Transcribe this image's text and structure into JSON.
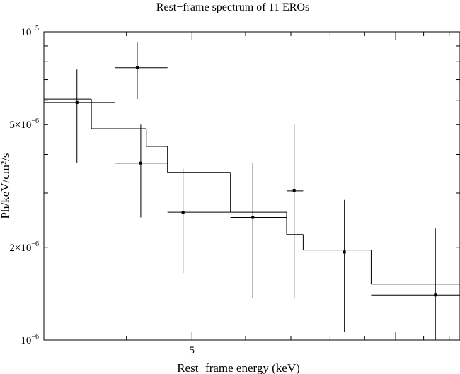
{
  "chart_data": {
    "type": "scatter",
    "title": "Rest−frame spectrum of 11 EROs",
    "xlabel": "Rest−frame energy (keV)",
    "ylabel": "Ph/keV/cm²/s",
    "xscale": "log",
    "yscale": "log",
    "xlim": [
      3.02,
      12.45
    ],
    "ylim": [
      1e-06,
      1e-05
    ],
    "x_tick_labels": [
      {
        "value": 5,
        "text": "5"
      }
    ],
    "y_tick_labels": [
      {
        "value": 1e-05,
        "mantissa": "10",
        "exponent": "−5"
      },
      {
        "value": 5e-06,
        "mantissa": "5×10",
        "exponent": "−6"
      },
      {
        "value": 2e-06,
        "mantissa": "2×10",
        "exponent": "−6"
      },
      {
        "value": 1e-06,
        "mantissa": "10",
        "exponent": "−6"
      }
    ],
    "series": [
      {
        "kind": "data",
        "points": [
          {
            "x": 3.38,
            "y": 5.9e-06,
            "xerr": [
              3.02,
              3.85
            ],
            "yerr": [
              3.75e-06,
              7.55e-06
            ]
          },
          {
            "x": 4.15,
            "y": 7.65e-06,
            "xerr": [
              3.85,
              4.6
            ],
            "yerr": [
              6.05e-06,
              9.25e-06
            ]
          },
          {
            "x": 4.2,
            "y": 3.75e-06,
            "xerr": [
              3.85,
              4.6
            ],
            "yerr": [
              2.5e-06,
              5e-06
            ]
          },
          {
            "x": 4.85,
            "y": 2.6e-06,
            "xerr": [
              4.6,
              5.7
            ],
            "yerr": [
              1.65e-06,
              3.6e-06
            ]
          },
          {
            "x": 6.15,
            "y": 2.5e-06,
            "xerr": [
              5.7,
              6.9
            ],
            "yerr": [
              1.37e-06,
              3.75e-06
            ]
          },
          {
            "x": 7.08,
            "y": 3.05e-06,
            "xerr": [
              6.9,
              7.3
            ],
            "yerr": [
              1.37e-06,
              5e-06
            ]
          },
          {
            "x": 8.4,
            "y": 1.93e-06,
            "xerr": [
              7.3,
              9.2
            ],
            "yerr": [
              1.06e-06,
              2.85e-06
            ]
          },
          {
            "x": 11.45,
            "y": 1.4e-06,
            "xerr": [
              9.2,
              12.45
            ],
            "yerr": [
              1e-06,
              2.3e-06
            ]
          }
        ]
      },
      {
        "kind": "model",
        "steps": [
          {
            "x0": 3.02,
            "x1": 3.55,
            "y": 6.05e-06
          },
          {
            "x0": 3.55,
            "x1": 4.28,
            "y": 4.85e-06
          },
          {
            "x0": 4.28,
            "x1": 4.6,
            "y": 4.25e-06
          },
          {
            "x0": 4.6,
            "x1": 5.7,
            "y": 3.5e-06
          },
          {
            "x0": 5.7,
            "x1": 6.9,
            "y": 2.6e-06
          },
          {
            "x0": 6.9,
            "x1": 7.3,
            "y": 2.2e-06
          },
          {
            "x0": 7.3,
            "x1": 9.2,
            "y": 1.96e-06
          },
          {
            "x0": 9.2,
            "x1": 12.45,
            "y": 1.52e-06
          }
        ]
      }
    ]
  }
}
